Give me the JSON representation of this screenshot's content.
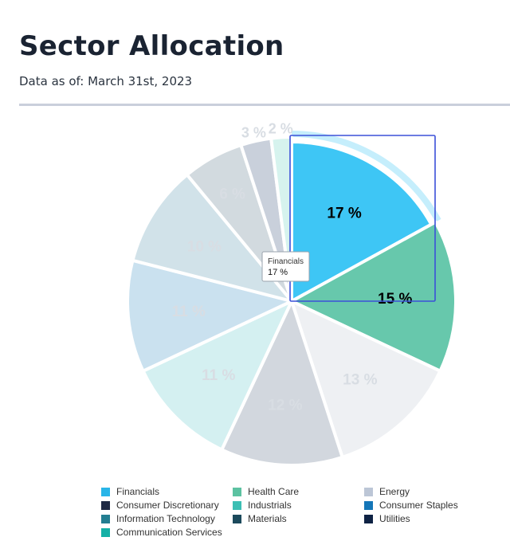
{
  "header": {
    "title": "Sector Allocation",
    "subtitle": "Data as of: March 31st, 2023"
  },
  "tooltip": {
    "name": "Financials",
    "value": "17 %"
  },
  "chart_data": {
    "type": "pie",
    "title": "Sector Allocation",
    "unit": "%",
    "highlighted": "Financials",
    "slices": [
      {
        "label": "Financials",
        "value": 17,
        "display": "17 %",
        "color": "#3ec6f5"
      },
      {
        "label": "Health Care",
        "value": 15,
        "display": "15 %",
        "color": "#67c8ac"
      },
      {
        "label": "",
        "value": 13,
        "display": "13 %",
        "color": "#eef0f3"
      },
      {
        "label": "",
        "value": 12,
        "display": "12 %",
        "color": "#d2d7de"
      },
      {
        "label": "",
        "value": 11,
        "display": "11 %",
        "color": "#d4f0f1"
      },
      {
        "label": "",
        "value": 11,
        "display": "11 %",
        "color": "#cae1ef"
      },
      {
        "label": "",
        "value": 10,
        "display": "10 %",
        "color": "#d1e2e9"
      },
      {
        "label": "",
        "value": 6,
        "display": "6 %",
        "color": "#d2dadf"
      },
      {
        "label": "",
        "value": 3,
        "display": "3 %",
        "color": "#c9d0db"
      },
      {
        "label": "",
        "value": 2,
        "display": "2 %",
        "color": "#d6f3ee"
      }
    ],
    "legend": [
      {
        "label": "Financials",
        "color": "#29b5e8"
      },
      {
        "label": "Health Care",
        "color": "#5cc2a1"
      },
      {
        "label": "Energy",
        "color": "#bcc6d6"
      },
      {
        "label": "Consumer Discretionary",
        "color": "#1f2a44"
      },
      {
        "label": "Industrials",
        "color": "#3cbfb4"
      },
      {
        "label": "Consumer Staples",
        "color": "#1476b8"
      },
      {
        "label": "Information Technology",
        "color": "#237e91"
      },
      {
        "label": "Materials",
        "color": "#1c4a5c"
      },
      {
        "label": "Utilities",
        "color": "#0e2244"
      },
      {
        "label": "Communication Services",
        "color": "#15b0a6"
      }
    ]
  }
}
